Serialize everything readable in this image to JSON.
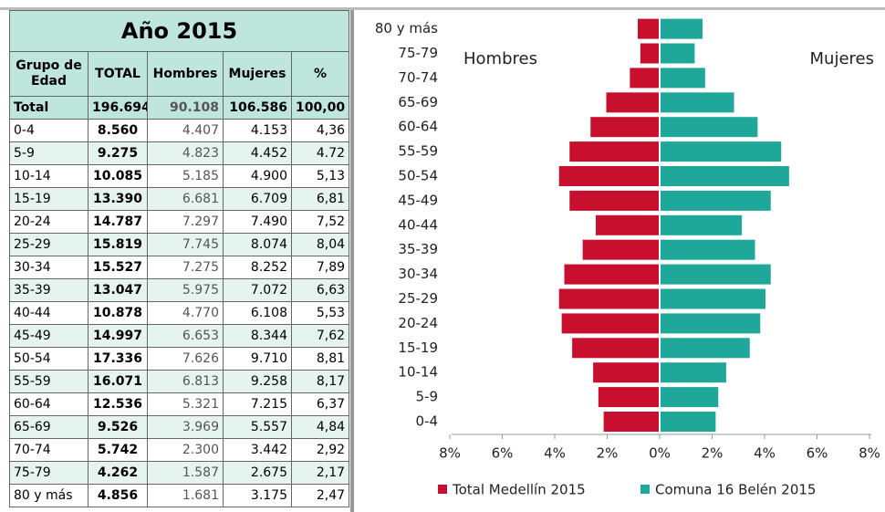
{
  "table": {
    "title": "Año 2015",
    "headers": [
      "Grupo de Edad",
      "TOTAL",
      "Hombres",
      "Mujeres",
      "%"
    ],
    "rows": [
      [
        "Total",
        "196.694",
        "90.108",
        "106.586",
        "100,00"
      ],
      [
        "0-4",
        "8.560",
        "4.407",
        "4.153",
        "4,36"
      ],
      [
        "5-9",
        "9.275",
        "4.823",
        "4.452",
        "4.72"
      ],
      [
        "10-14",
        "10.085",
        "5.185",
        "4.900",
        "5,13"
      ],
      [
        "15-19",
        "13.390",
        "6.681",
        "6.709",
        "6,81"
      ],
      [
        "20-24",
        "14.787",
        "7.297",
        "7.490",
        "7,52"
      ],
      [
        "25-29",
        "15.819",
        "7.745",
        "8.074",
        "8,04"
      ],
      [
        "30-34",
        "15.527",
        "7.275",
        "8.252",
        "7,89"
      ],
      [
        "35-39",
        "13.047",
        "5.975",
        "7.072",
        "6,63"
      ],
      [
        "40-44",
        "10.878",
        "4.770",
        "6.108",
        "5,53"
      ],
      [
        "45-49",
        "14.997",
        "6.653",
        "8.344",
        "7,62"
      ],
      [
        "50-54",
        "17.336",
        "7.626",
        "9.710",
        "8,81"
      ],
      [
        "55-59",
        "16.071",
        "6.813",
        "9.258",
        "8,17"
      ],
      [
        "60-64",
        "12.536",
        "5.321",
        "7.215",
        "6,37"
      ],
      [
        "65-69",
        "9.526",
        "3.969",
        "5.557",
        "4,84"
      ],
      [
        "70-74",
        "5.742",
        "2.300",
        "3.442",
        "2,92"
      ],
      [
        "75-79",
        "4.262",
        "1.587",
        "2.675",
        "2,17"
      ],
      [
        "80 y más",
        "4.856",
        "1.681",
        "3.175",
        "2,47"
      ]
    ]
  },
  "chart_data": {
    "type": "pyramid",
    "left_label": "Hombres",
    "right_label": "Mujeres",
    "categories": [
      "0-4",
      "5-9",
      "10-14",
      "15-19",
      "20-24",
      "25-29",
      "30-34",
      "35-39",
      "40-44",
      "45-49",
      "50-54",
      "55-59",
      "60-64",
      "65-69",
      "70-74",
      "75-79",
      "80 y más"
    ],
    "series": [
      {
        "name": "Total Medellín 2015",
        "color": "#c8102e",
        "side": "left",
        "values": [
          2.1,
          2.3,
          2.5,
          3.3,
          3.7,
          3.8,
          3.6,
          2.9,
          2.4,
          3.4,
          3.8,
          3.4,
          2.6,
          2.0,
          1.1,
          0.7,
          0.8
        ]
      },
      {
        "name": "Comuna 16 Belén 2015",
        "color": "#1fa89a",
        "side": "right",
        "values": [
          2.1,
          2.2,
          2.5,
          3.4,
          3.8,
          4.0,
          4.2,
          3.6,
          3.1,
          4.2,
          4.9,
          4.6,
          3.7,
          2.8,
          1.7,
          1.3,
          1.6
        ]
      }
    ],
    "xlim": [
      0,
      8
    ],
    "xticks": [
      {
        "value": 8,
        "label": "8%",
        "side": "left"
      },
      {
        "value": 6,
        "label": "6%",
        "side": "left"
      },
      {
        "value": 4,
        "label": "4%",
        "side": "left"
      },
      {
        "value": 2,
        "label": "2%",
        "side": "left"
      },
      {
        "value": 0,
        "label": "0%",
        "side": "center"
      },
      {
        "value": 2,
        "label": "2%",
        "side": "right"
      },
      {
        "value": 4,
        "label": "4%",
        "side": "right"
      },
      {
        "value": 6,
        "label": "6%",
        "side": "right"
      },
      {
        "value": 8,
        "label": "8%",
        "side": "right"
      }
    ]
  }
}
